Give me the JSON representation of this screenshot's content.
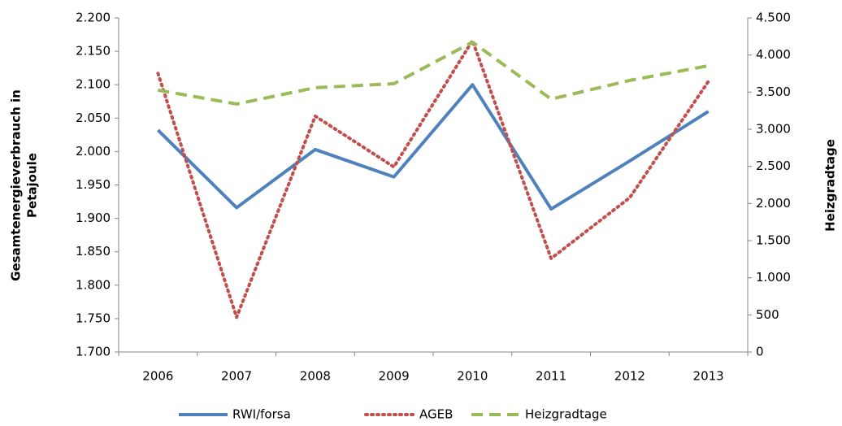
{
  "chart_data": {
    "type": "line",
    "ylabel": [
      "Gesamtenergieverbrauch in",
      "Petajoule"
    ],
    "y2label": "Heizgradtage",
    "categories": [
      "2006",
      "2007",
      "2008",
      "2009",
      "2010",
      "2011",
      "2012",
      "2013"
    ],
    "series": [
      {
        "name": "RWI/forsa",
        "color": "#4f81bd",
        "style": "solid",
        "values": [
          2032,
          1916,
          2003,
          1962,
          2100,
          1914,
          1986,
          2060
        ]
      },
      {
        "name": "AGEB",
        "color": "#c0504d",
        "style": "dotted",
        "values": [
          2117,
          1752,
          2053,
          1977,
          2166,
          1840,
          1931,
          2105
        ]
      },
      {
        "name": "Heizgradtage",
        "color": "#9bbb59",
        "style": "dashed",
        "axis": "y2",
        "values": [
          3527,
          3340,
          3560,
          3614,
          4173,
          3406,
          3658,
          3855
        ]
      }
    ],
    "ylim": [
      1700,
      2200
    ],
    "yticks": [
      {
        "value": 1700,
        "label": "1.700"
      },
      {
        "value": 1750,
        "label": "1.750"
      },
      {
        "value": 1800,
        "label": "1.800"
      },
      {
        "value": 1850,
        "label": "1.850"
      },
      {
        "value": 1900,
        "label": "1.900"
      },
      {
        "value": 1950,
        "label": "1.950"
      },
      {
        "value": 2000,
        "label": "2.000"
      },
      {
        "value": 2050,
        "label": "2.050"
      },
      {
        "value": 2100,
        "label": "2.100"
      },
      {
        "value": 2150,
        "label": "2.150"
      },
      {
        "value": 2200,
        "label": "2.200"
      }
    ],
    "y2lim": [
      0,
      4500
    ],
    "y2ticks": [
      0,
      500,
      {
        "value": 1000,
        "label": "1.000"
      },
      {
        "value": 1500,
        "label": "1.500"
      },
      {
        "value": 2000,
        "label": "2.000"
      },
      {
        "value": 2500,
        "label": "2.500"
      },
      {
        "value": 3000,
        "label": "3.000"
      },
      {
        "value": 3500,
        "label": "3.500"
      },
      {
        "value": 4000,
        "label": "4.000"
      },
      {
        "value": 4500,
        "label": "4.500"
      }
    ],
    "grid": false,
    "legend": "bottom"
  }
}
